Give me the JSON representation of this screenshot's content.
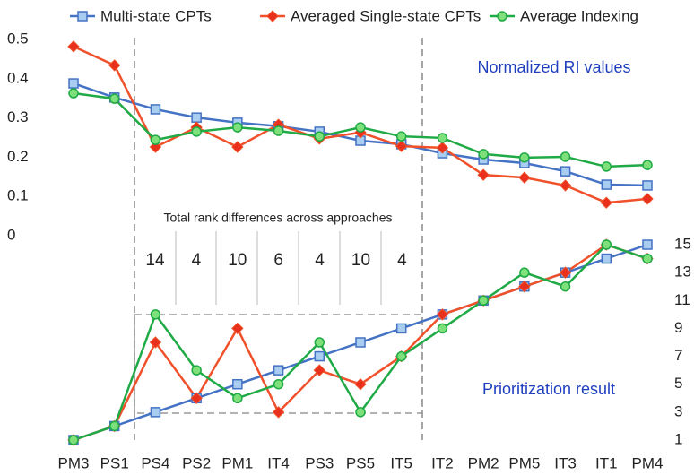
{
  "chart_data": {
    "type": "line",
    "categories": [
      "PM3",
      "PS1",
      "PS4",
      "PS2",
      "PM1",
      "IT4",
      "PS3",
      "PS5",
      "IT5",
      "IT2",
      "PM2",
      "PM5",
      "IT3",
      "IT1",
      "PM4"
    ],
    "ylim": [
      0,
      0.5
    ],
    "yticks": [
      0,
      0.1,
      0.2,
      0.3,
      0.4,
      0.5
    ],
    "y2lim": [
      1,
      15
    ],
    "y2ticks": [
      1,
      3,
      5,
      7,
      9,
      11,
      13,
      15
    ],
    "series": [
      {
        "name": "Multi-state CPTs",
        "color": "#4472c4",
        "marker": "square",
        "values": [
          0.388,
          0.352,
          0.322,
          0.301,
          0.288,
          0.279,
          0.265,
          0.242,
          0.233,
          0.21,
          0.194,
          0.185,
          0.164,
          0.13,
          0.128
        ]
      },
      {
        "name": "Averaged Single-state CPTs",
        "color": "#f0502a",
        "marker": "diamond",
        "values": [
          0.482,
          0.434,
          0.226,
          0.276,
          0.226,
          0.283,
          0.247,
          0.263,
          0.228,
          0.224,
          0.155,
          0.148,
          0.128,
          0.084,
          0.094
        ]
      },
      {
        "name": "Average Indexing",
        "color": "#1faa45",
        "marker": "circle",
        "values": [
          0.363,
          0.349,
          0.244,
          0.265,
          0.276,
          0.267,
          0.253,
          0.276,
          0.253,
          0.249,
          0.208,
          0.199,
          0.201,
          0.176,
          0.18
        ]
      },
      {
        "color": "#4472c4",
        "marker": "square",
        "axis": "y2",
        "values": [
          1,
          2,
          3,
          4,
          5,
          6,
          7,
          8,
          9,
          10,
          11,
          12,
          13,
          14,
          15
        ]
      },
      {
        "color": "#f0502a",
        "marker": "diamond",
        "axis": "y2",
        "values": [
          1,
          2,
          8,
          4,
          9,
          3,
          6,
          5,
          7,
          10,
          11,
          12,
          13,
          15,
          14
        ]
      },
      {
        "color": "#1faa45",
        "marker": "circle",
        "axis": "y2",
        "values": [
          1,
          2,
          10,
          6,
          4,
          5,
          8,
          3,
          7,
          9,
          11,
          13,
          12,
          15,
          14
        ]
      }
    ],
    "annotations": [
      "Normalized RI values",
      "Prioritization result",
      "Total rank differences across approaches"
    ],
    "rank_differences": [
      14,
      4,
      10,
      6,
      4,
      10,
      4
    ]
  }
}
